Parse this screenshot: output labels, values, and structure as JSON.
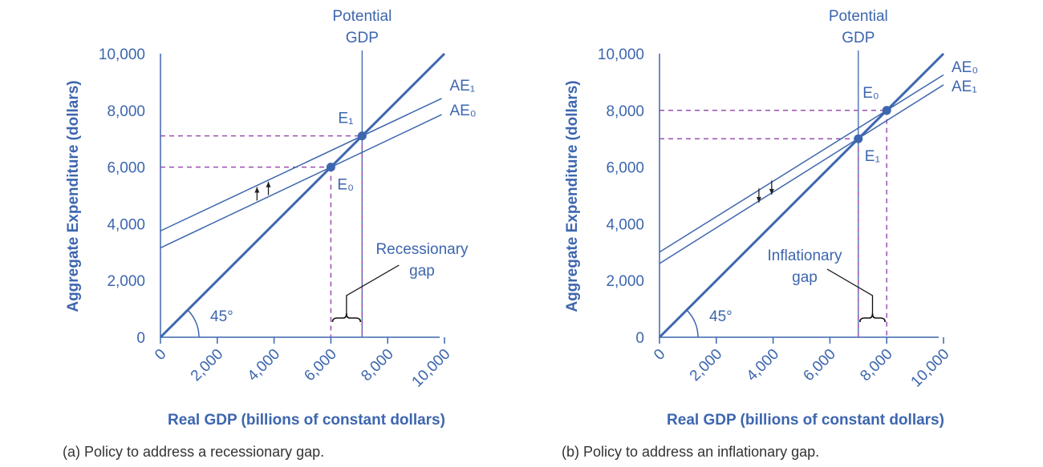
{
  "chart_data": [
    {
      "type": "line",
      "caption": "(a) Policy to address a recessionary gap.",
      "xlabel": "Real GDP (billions of constant dollars)",
      "ylabel": "Aggregate Expenditure (dollars)",
      "xlim": [
        0,
        10000
      ],
      "ylim": [
        0,
        10000
      ],
      "xticks": [
        "0",
        "2,000",
        "4,000",
        "6,000",
        "8,000",
        "10,000"
      ],
      "yticks": [
        "0",
        "2,000",
        "4,000",
        "6,000",
        "8,000",
        "10,000"
      ],
      "potential_gdp": {
        "x": 7100,
        "label_line1": "Potential",
        "label_line2": "GDP"
      },
      "angle_label": "45°",
      "series": [
        {
          "name": "AE₁",
          "x": [
            0,
            9900
          ],
          "y": [
            3750,
            8420
          ]
        },
        {
          "name": "AE₀",
          "x": [
            0,
            9900
          ],
          "y": [
            3150,
            7850
          ]
        },
        {
          "name": "45-degree line",
          "x": [
            0,
            10000
          ],
          "y": [
            0,
            10000
          ]
        }
      ],
      "points": [
        {
          "label": "E₀",
          "x": 6000,
          "y": 6000
        },
        {
          "label": "E₁",
          "x": 7100,
          "y": 7100
        }
      ],
      "shift_arrows": "up",
      "gap": {
        "label_line1": "Recessionary",
        "label_line2": "gap",
        "from": 6000,
        "to": 7100
      },
      "colors": {
        "line": "#3d66ae",
        "guide": "#9b4fb0",
        "arrow": "#222222"
      }
    },
    {
      "type": "line",
      "caption": "(b) Policy to address an inflationary gap.",
      "xlabel": "Real GDP (billions of constant dollars)",
      "ylabel": "Aggregate Expenditure (dollars)",
      "xlim": [
        0,
        10000
      ],
      "ylim": [
        0,
        10000
      ],
      "xticks": [
        "0",
        "2,000",
        "4,000",
        "6,000",
        "8,000",
        "10,000"
      ],
      "yticks": [
        "0",
        "2,000",
        "4,000",
        "6,000",
        "8,000",
        "10,000"
      ],
      "potential_gdp": {
        "x": 7000,
        "label_line1": "Potential",
        "label_line2": "GDP"
      },
      "angle_label": "45°",
      "series": [
        {
          "name": "AE₀",
          "x": [
            0,
            10000
          ],
          "y": [
            3000,
            9250
          ]
        },
        {
          "name": "AE₁",
          "x": [
            0,
            10000
          ],
          "y": [
            2600,
            8900
          ]
        },
        {
          "name": "45-degree line",
          "x": [
            0,
            10000
          ],
          "y": [
            0,
            10000
          ]
        }
      ],
      "points": [
        {
          "label": "E₀",
          "x": 8000,
          "y": 8000
        },
        {
          "label": "E₁",
          "x": 7000,
          "y": 7000
        }
      ],
      "shift_arrows": "down",
      "gap": {
        "label_line1": "Inflationary",
        "label_line2": "gap",
        "from": 7000,
        "to": 8000
      },
      "colors": {
        "line": "#3d66ae",
        "guide": "#9b4fb0",
        "arrow": "#222222"
      }
    }
  ]
}
